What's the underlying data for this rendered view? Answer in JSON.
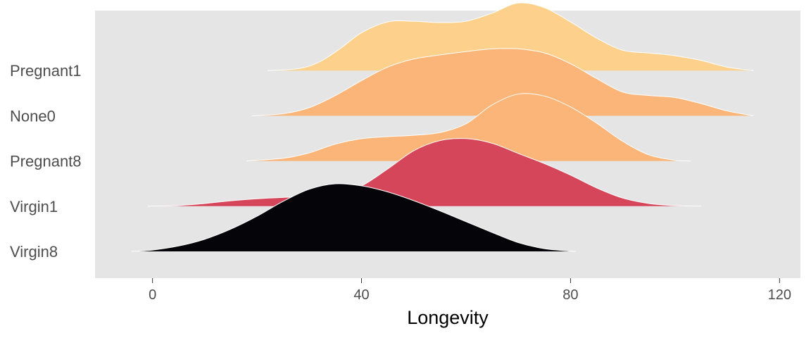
{
  "chart_data": {
    "type": "area",
    "subtype": "ridgeline",
    "title": "",
    "xlabel": "Longevity",
    "ylabel": "",
    "xlim": [
      -11,
      124
    ],
    "xticks": [
      0,
      40,
      80,
      120
    ],
    "grid": false,
    "legend": "none",
    "panel_background": "#e5e5e5",
    "series": [
      {
        "name": "Virgin8",
        "color": "#050409",
        "x": [
          -4,
          0,
          5,
          10,
          15,
          20,
          25,
          30,
          35,
          40,
          45,
          50,
          55,
          60,
          65,
          70,
          75,
          80,
          81
        ],
        "density": [
          0,
          0.02,
          0.08,
          0.18,
          0.33,
          0.52,
          0.74,
          0.92,
          1.0,
          0.97,
          0.88,
          0.75,
          0.6,
          0.44,
          0.28,
          0.13,
          0.04,
          0.005,
          0
        ]
      },
      {
        "name": "Virgin1",
        "color": "#d6465a",
        "x": [
          -1,
          5,
          10,
          15,
          20,
          25,
          30,
          35,
          40,
          45,
          50,
          55,
          60,
          65,
          70,
          75,
          80,
          85,
          90,
          95,
          100,
          105
        ],
        "density": [
          0,
          0.01,
          0.04,
          0.08,
          0.11,
          0.13,
          0.14,
          0.17,
          0.3,
          0.55,
          0.82,
          0.97,
          1.0,
          0.93,
          0.78,
          0.63,
          0.46,
          0.27,
          0.12,
          0.04,
          0.008,
          0
        ]
      },
      {
        "name": "Pregnant8",
        "color": "#fcb578",
        "x": [
          18,
          25,
          30,
          35,
          40,
          45,
          50,
          55,
          60,
          65,
          70,
          75,
          80,
          85,
          90,
          95,
          100,
          103
        ],
        "density": [
          0,
          0.04,
          0.12,
          0.25,
          0.33,
          0.36,
          0.38,
          0.42,
          0.55,
          0.83,
          0.99,
          0.96,
          0.8,
          0.56,
          0.29,
          0.09,
          0.01,
          0
        ]
      },
      {
        "name": "None0",
        "color": "#fcb578",
        "x": [
          19,
          25,
          30,
          35,
          40,
          45,
          50,
          55,
          60,
          65,
          70,
          75,
          80,
          85,
          90,
          95,
          100,
          105,
          110,
          115
        ],
        "density": [
          0,
          0.03,
          0.12,
          0.3,
          0.52,
          0.72,
          0.84,
          0.9,
          0.95,
          0.99,
          0.99,
          0.93,
          0.77,
          0.55,
          0.35,
          0.3,
          0.27,
          0.18,
          0.07,
          0
        ]
      },
      {
        "name": "Pregnant1",
        "color": "#fdd18c",
        "x": [
          22,
          28,
          32,
          36,
          40,
          45,
          50,
          55,
          60,
          65,
          70,
          75,
          80,
          85,
          90,
          95,
          100,
          105,
          110,
          115
        ],
        "density": [
          0,
          0.03,
          0.13,
          0.33,
          0.56,
          0.72,
          0.73,
          0.71,
          0.73,
          0.85,
          1.0,
          0.93,
          0.72,
          0.48,
          0.3,
          0.26,
          0.22,
          0.15,
          0.05,
          0
        ]
      }
    ]
  }
}
